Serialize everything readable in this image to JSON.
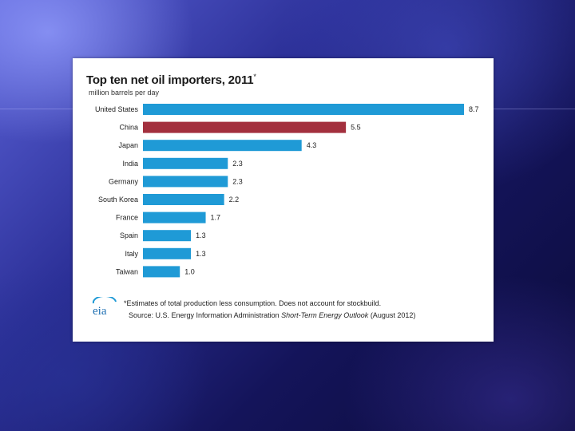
{
  "chart_data": {
    "type": "bar",
    "orientation": "horizontal",
    "title": "Top ten net oil importers, 2011",
    "title_mark": "*",
    "subtitle": "million barrels per day",
    "categories": [
      "United States",
      "China",
      "Japan",
      "India",
      "Germany",
      "South Korea",
      "France",
      "Spain",
      "Italy",
      "Taiwan"
    ],
    "values": [
      8.7,
      5.5,
      4.3,
      2.3,
      2.3,
      2.2,
      1.7,
      1.3,
      1.3,
      1.0
    ],
    "value_labels": [
      "8.7",
      "5.5",
      "4.3",
      "2.3",
      "2.3",
      "2.2",
      "1.7",
      "1.3",
      "1.3",
      "1.0"
    ],
    "highlight": "China",
    "colors": {
      "default": "#1f9ad6",
      "highlight": "#a3303e"
    },
    "xlim": [
      0,
      8.7
    ],
    "grid": false,
    "legend": "none"
  },
  "footer": {
    "logo_text": "eia",
    "footnote": "*Estimates of total production less consumption. Does not account for stockbuild.",
    "source_prefix": "Source: U.S. Energy Information Administration ",
    "source_publication": "Short-Term Energy Outlook",
    "source_suffix": " (August 2012)"
  }
}
